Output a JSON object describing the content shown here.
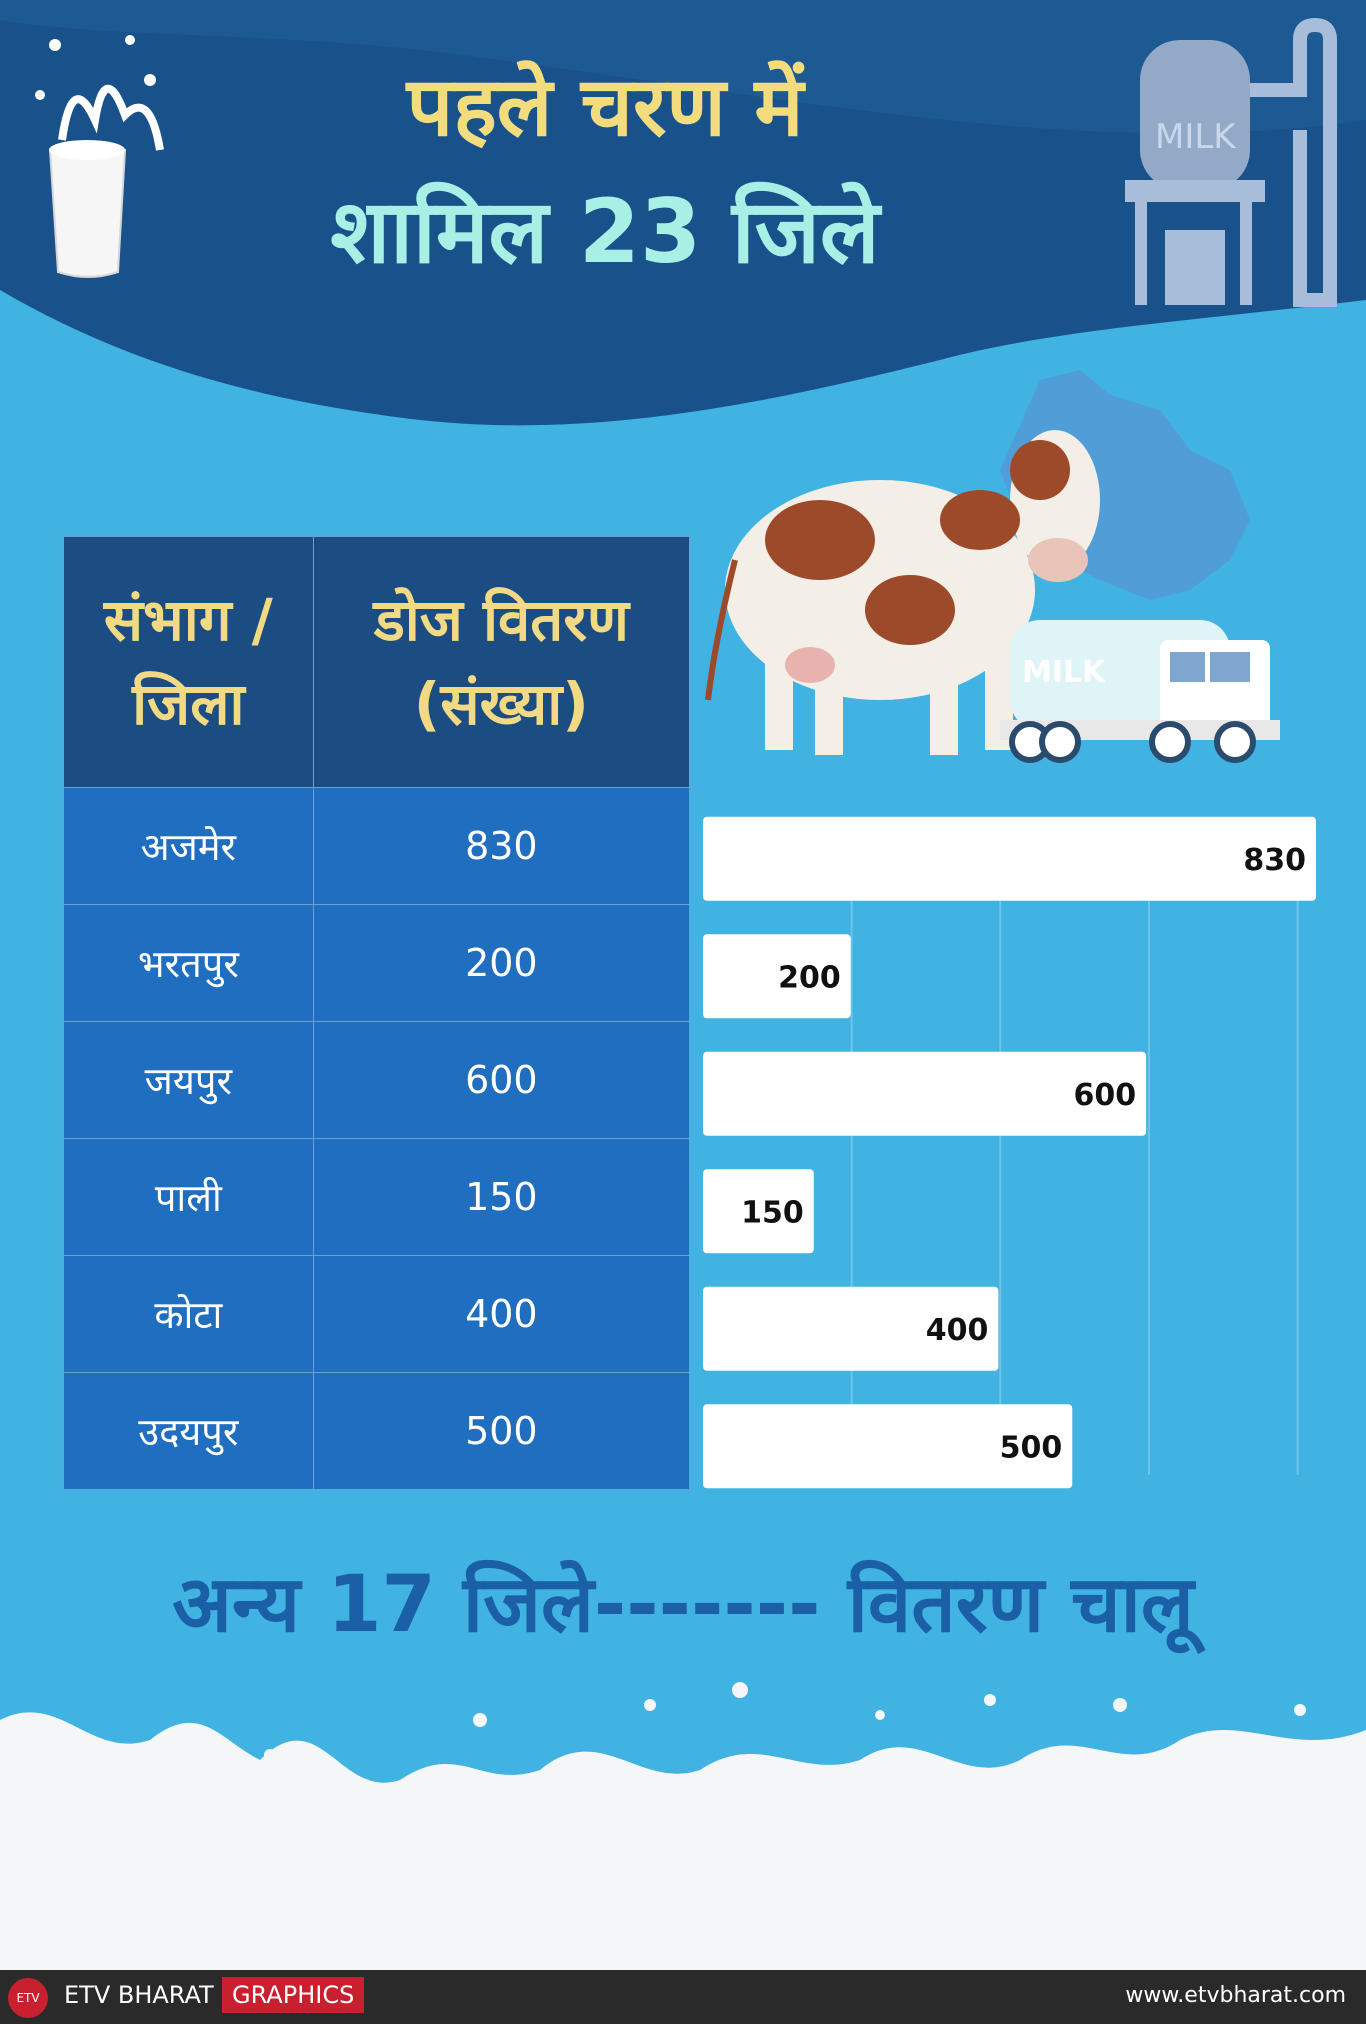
{
  "title_line1": "पहले चरण में",
  "title_line2": "शामिल 23 जिले",
  "table": {
    "header": [
      "संभाग /\nजिला",
      "डोज वितरण\n(संख्या)"
    ],
    "rows": [
      {
        "district": "अजमेर",
        "doses": "830"
      },
      {
        "district": "भरतपुर",
        "doses": "200"
      },
      {
        "district": "जयपुर",
        "doses": "600"
      },
      {
        "district": "पाली",
        "doses": "150"
      },
      {
        "district": "कोटा",
        "doses": "400"
      },
      {
        "district": "उदयपुर",
        "doses": "500"
      }
    ]
  },
  "chart_data": {
    "type": "bar",
    "orientation": "horizontal",
    "categories": [
      "अजमेर",
      "भरतपुर",
      "जयपुर",
      "पाली",
      "कोटा",
      "उदयपुर"
    ],
    "values": [
      830,
      200,
      600,
      150,
      400,
      500
    ],
    "xlim": [
      0,
      830
    ],
    "grid": true
  },
  "footer_note": "अन्य 17 जिले------- वितरण चालू",
  "milk_label": "MILK",
  "truck_label": "MILK",
  "brand": "ETV BHARAT",
  "graphics_label": "GRAPHICS",
  "website": "www.etvbharat.com",
  "colors": {
    "bar": "#ffffff",
    "header_bg": "#1b4d83",
    "cell_bg": "#1f6ec0",
    "title_yellow": "#f3dc7e",
    "title_mint": "#a8efe6"
  }
}
